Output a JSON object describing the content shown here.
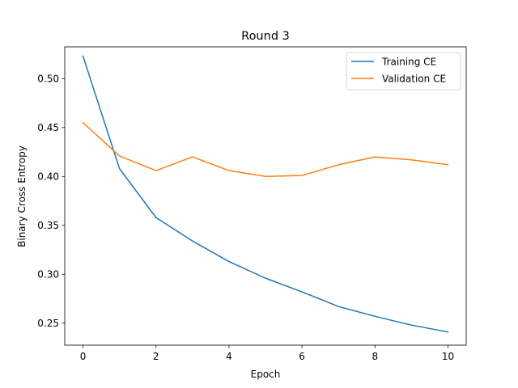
{
  "chart_data": {
    "type": "line",
    "title": "Round 3",
    "xlabel": "Epoch",
    "ylabel": "Binary Cross Entropy",
    "xlim": [
      -0.5,
      10.5
    ],
    "ylim": [
      0.2275,
      0.5325
    ],
    "xticks": [
      0,
      2,
      4,
      6,
      8,
      10
    ],
    "xtick_labels": [
      "0",
      "2",
      "4",
      "6",
      "8",
      "10"
    ],
    "yticks": [
      0.25,
      0.3,
      0.35,
      0.4,
      0.45,
      0.5
    ],
    "ytick_labels": [
      "0.25",
      "0.30",
      "0.35",
      "0.40",
      "0.45",
      "0.50"
    ],
    "grid": false,
    "legend_position": "top-right",
    "x": [
      0,
      1,
      2,
      3,
      4,
      5,
      6,
      7,
      8,
      9,
      10
    ],
    "series": [
      {
        "name": "Training CE",
        "color": "#1f77b4",
        "values": [
          0.523,
          0.408,
          0.358,
          0.334,
          0.313,
          0.296,
          0.282,
          0.267,
          0.257,
          0.248,
          0.241
        ]
      },
      {
        "name": "Validation CE",
        "color": "#ff7f0e",
        "values": [
          0.455,
          0.421,
          0.406,
          0.42,
          0.406,
          0.4,
          0.401,
          0.412,
          0.42,
          0.417,
          0.412
        ]
      }
    ]
  }
}
